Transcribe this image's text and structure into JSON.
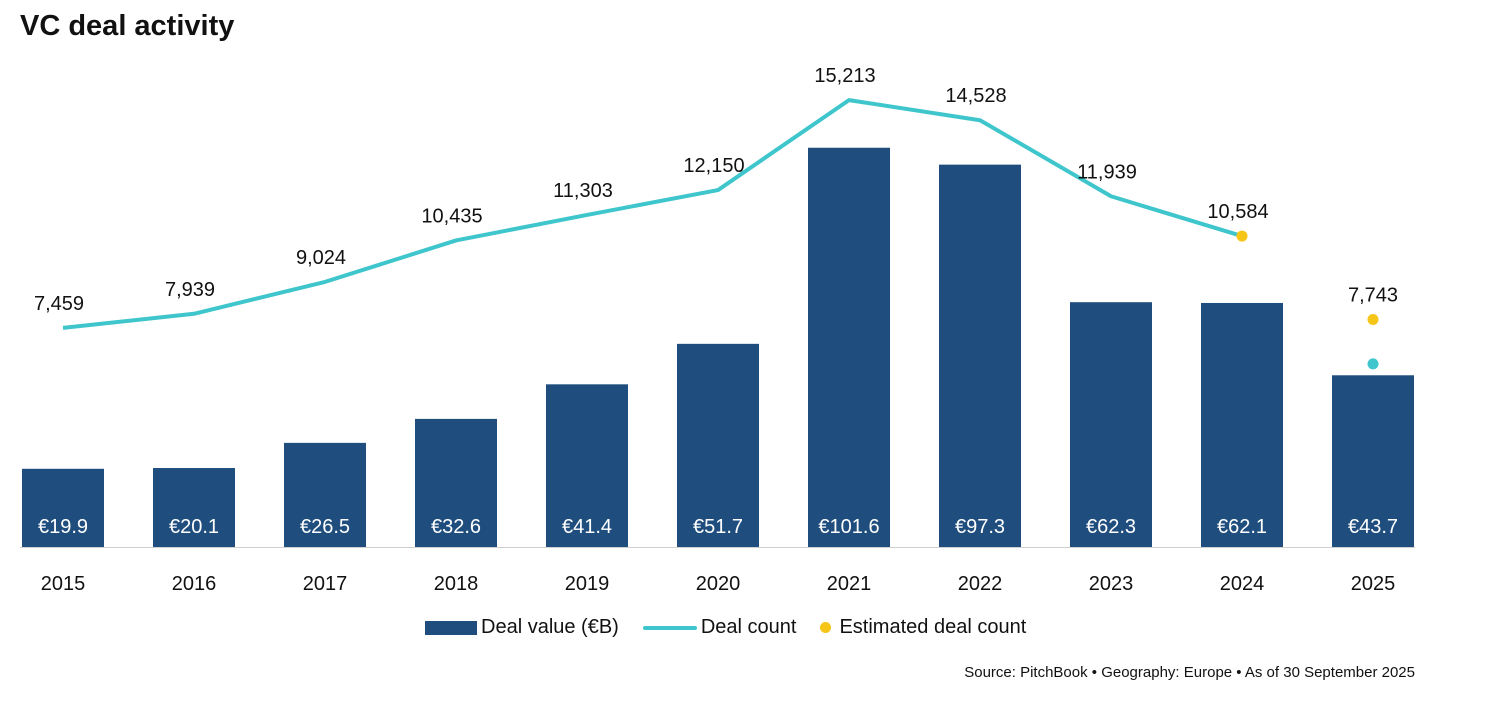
{
  "title": "VC deal activity",
  "chart_data": {
    "type": "bar+line",
    "title": "VC deal activity",
    "categories": [
      "2015",
      "2016",
      "2017",
      "2018",
      "2019",
      "2020",
      "2021",
      "2022",
      "2023",
      "2024",
      "2025"
    ],
    "series": [
      {
        "name": "Deal value (€B)",
        "type": "bar",
        "values": [
          19.9,
          20.1,
          26.5,
          32.6,
          41.4,
          51.7,
          101.6,
          97.3,
          62.3,
          62.1,
          43.7
        ],
        "labels": [
          "€19.9",
          "€20.1",
          "€26.5",
          "€32.6",
          "€41.4",
          "€51.7",
          "€101.6",
          "€97.3",
          "€62.3",
          "€62.1",
          "€43.7"
        ]
      },
      {
        "name": "Deal count",
        "type": "line",
        "values": [
          7459,
          7939,
          9024,
          10435,
          11303,
          12150,
          15213,
          14528,
          11939,
          10584,
          null
        ],
        "labels": [
          "7,459",
          "7,939",
          "9,024",
          "10,435",
          "11,303",
          "12,150",
          "15,213",
          "14,528",
          "11,939",
          "10,584",
          ""
        ],
        "partial_point": {
          "category": "2025",
          "value": 6235
        }
      },
      {
        "name": "Estimated deal count",
        "type": "scatter",
        "points": [
          {
            "category": "2024",
            "value": 10584
          },
          {
            "category": "2025",
            "value": 7743,
            "label": "7,743"
          }
        ]
      }
    ],
    "value_axis": [
      0,
      139.2
    ],
    "count_axis": [
      0,
      18620
    ],
    "grid": false,
    "legend_position": "bottom",
    "colors": {
      "bar": "#1f4e7e",
      "line": "#3ec6cc",
      "estimate": "#f5c518"
    }
  },
  "legend": {
    "bar": "Deal value (€B)",
    "line": "Deal count",
    "estimate": "Estimated deal count"
  },
  "source": "Source: PitchBook  •  Geography: Europe  •  As of 30 September 2025"
}
